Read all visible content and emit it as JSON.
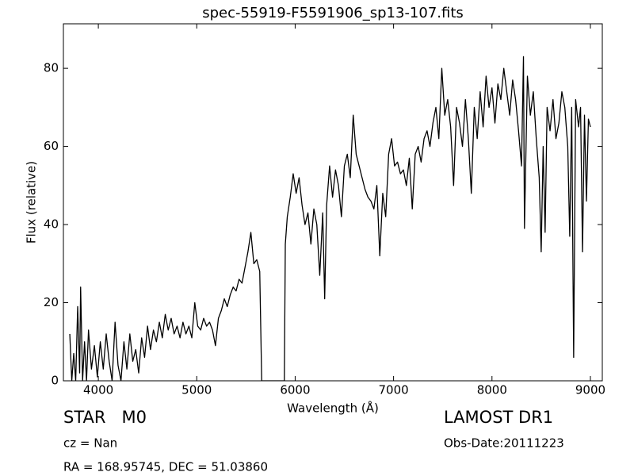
{
  "chart_data": {
    "type": "line",
    "title": "spec-55919-F5591906_sp13-107.fits",
    "x_label": "Wavelength (Å)",
    "y_label": "Flux (relative)",
    "annotations": [
      "STAR   M0",
      "LAMOST DR1",
      "cz = Nan",
      "Obs-Date:20111223",
      "RA = 168.95745, DEC = 51.03860"
    ],
    "color": "#000000",
    "xlim": [
      3645,
      9121
    ],
    "ylim": [
      0,
      91.4
    ],
    "xticks": [
      4000,
      5000,
      6000,
      7000,
      8000,
      9000
    ],
    "yticks": [
      0,
      20,
      40,
      60,
      80
    ],
    "grid": false,
    "x": [
      3710,
      3730,
      3750,
      3770,
      3790,
      3810,
      3820,
      3840,
      3860,
      3880,
      3900,
      3930,
      3960,
      3990,
      4020,
      4050,
      4080,
      4110,
      4140,
      4170,
      4200,
      4230,
      4260,
      4290,
      4320,
      4350,
      4380,
      4410,
      4440,
      4470,
      4500,
      4530,
      4560,
      4590,
      4620,
      4650,
      4680,
      4710,
      4740,
      4770,
      4800,
      4830,
      4860,
      4890,
      4920,
      4950,
      4980,
      5010,
      5040,
      5070,
      5100,
      5130,
      5160,
      5190,
      5220,
      5250,
      5280,
      5310,
      5340,
      5370,
      5400,
      5430,
      5460,
      5490,
      5520,
      5550,
      5580,
      5610,
      5640,
      5660,
      5700,
      5800,
      5890,
      5900,
      5920,
      5950,
      5980,
      6010,
      6040,
      6070,
      6100,
      6130,
      6160,
      6190,
      6220,
      6250,
      6280,
      6300,
      6320,
      6350,
      6380,
      6410,
      6440,
      6470,
      6500,
      6530,
      6560,
      6590,
      6620,
      6650,
      6680,
      6710,
      6740,
      6770,
      6800,
      6830,
      6860,
      6890,
      6920,
      6950,
      6980,
      7010,
      7040,
      7070,
      7100,
      7130,
      7160,
      7190,
      7220,
      7250,
      7280,
      7310,
      7340,
      7370,
      7400,
      7430,
      7460,
      7490,
      7520,
      7550,
      7580,
      7610,
      7640,
      7670,
      7700,
      7730,
      7760,
      7790,
      7820,
      7850,
      7880,
      7910,
      7940,
      7970,
      8000,
      8030,
      8060,
      8090,
      8120,
      8150,
      8180,
      8210,
      8240,
      8270,
      8300,
      8320,
      8330,
      8360,
      8390,
      8420,
      8450,
      8480,
      8500,
      8520,
      8540,
      8560,
      8590,
      8620,
      8650,
      8680,
      8710,
      8740,
      8770,
      8790,
      8810,
      8830,
      8850,
      8880,
      8900,
      8920,
      8940,
      8960,
      8980,
      9000
    ],
    "values": [
      12,
      0,
      7,
      0,
      19,
      2,
      24,
      0,
      10,
      0,
      13,
      3,
      9,
      1,
      10,
      3,
      12,
      5,
      0,
      15,
      4,
      0,
      10,
      3,
      12,
      5,
      8,
      2,
      11,
      6,
      14,
      8,
      13,
      10,
      15,
      11,
      17,
      13,
      16,
      12,
      14,
      11,
      15,
      12,
      14,
      11,
      20,
      14,
      13,
      16,
      14,
      15,
      13,
      9,
      16,
      18,
      21,
      19,
      22,
      24,
      23,
      26,
      25,
      29,
      33,
      38,
      30,
      31,
      28,
      0,
      0,
      0,
      0,
      35,
      42,
      47,
      53,
      48,
      52,
      45,
      40,
      43,
      35,
      44,
      40,
      27,
      43,
      21,
      45,
      55,
      47,
      54,
      50,
      42,
      55,
      58,
      52,
      68,
      58,
      55,
      52,
      49,
      47,
      46,
      44,
      50,
      32,
      48,
      42,
      58,
      62,
      55,
      56,
      53,
      54,
      50,
      57,
      44,
      58,
      60,
      56,
      62,
      64,
      60,
      66,
      70,
      62,
      80,
      68,
      72,
      65,
      50,
      70,
      66,
      60,
      72,
      62,
      48,
      70,
      62,
      74,
      65,
      78,
      70,
      75,
      66,
      76,
      72,
      80,
      74,
      68,
      77,
      72,
      64,
      55,
      83,
      39,
      78,
      68,
      74,
      62,
      52,
      33,
      60,
      38,
      70,
      64,
      72,
      62,
      66,
      74,
      70,
      60,
      37,
      70,
      6,
      72,
      65,
      70,
      33,
      68,
      46,
      67,
      65
    ]
  }
}
